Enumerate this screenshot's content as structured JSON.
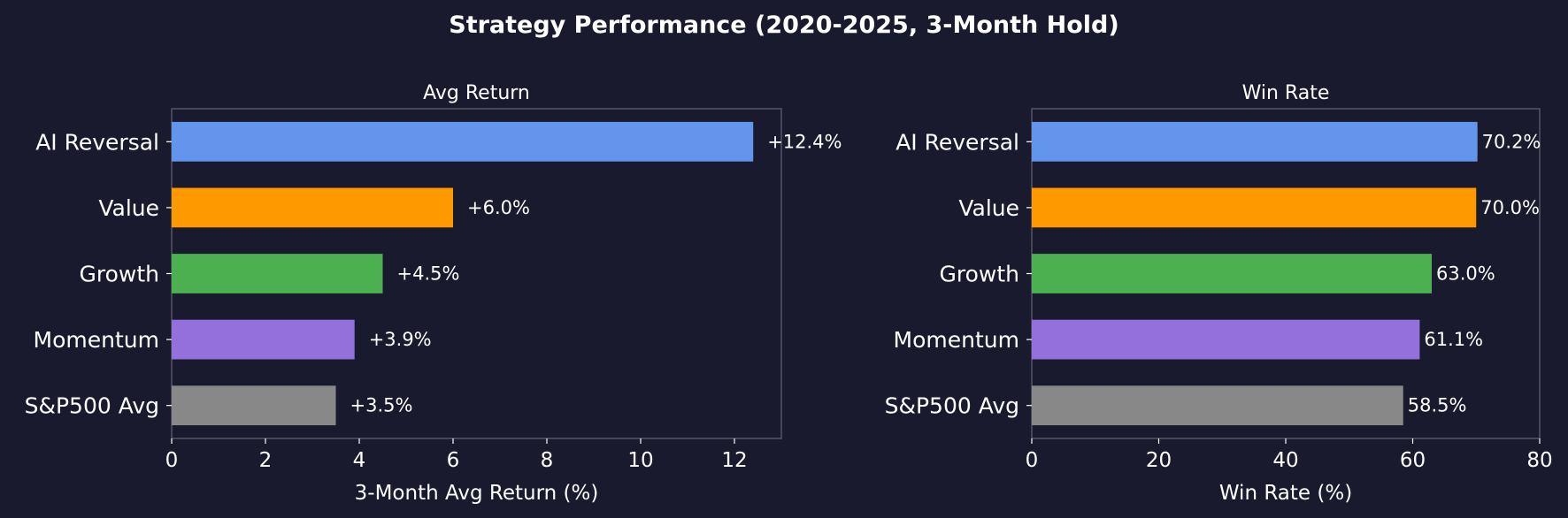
{
  "title": "Strategy Performance (2020-2025, 3-Month Hold)",
  "colors": {
    "background": "#1a1a2e",
    "text": "#ffffff",
    "frame": "#555566"
  },
  "chart_data": [
    {
      "type": "bar",
      "orientation": "horizontal",
      "title": "Avg Return",
      "xlabel": "3-Month Avg Return (%)",
      "ylabel": "",
      "categories": [
        "AI Reversal",
        "Value",
        "Growth",
        "Momentum",
        "S&P500 Avg"
      ],
      "values": [
        12.4,
        6.0,
        4.5,
        3.9,
        3.5
      ],
      "data_labels": [
        "+12.4%",
        "+6.0%",
        "+4.5%",
        "+3.9%",
        "+3.5%"
      ],
      "colors": [
        "#6495ed",
        "#ff9900",
        "#4caf50",
        "#9370db",
        "#888888"
      ],
      "xlim": [
        0,
        13
      ],
      "xticks": [
        0,
        2,
        4,
        6,
        8,
        10,
        12
      ],
      "xtick_labels": [
        "0",
        "2",
        "4",
        "6",
        "8",
        "10",
        "12"
      ],
      "grid": false
    },
    {
      "type": "bar",
      "orientation": "horizontal",
      "title": "Win Rate",
      "xlabel": "Win Rate (%)",
      "ylabel": "",
      "categories": [
        "AI Reversal",
        "Value",
        "Growth",
        "Momentum",
        "S&P500 Avg"
      ],
      "values": [
        70.2,
        70.0,
        63.0,
        61.1,
        58.5
      ],
      "data_labels": [
        "70.2%",
        "70.0%",
        "63.0%",
        "61.1%",
        "58.5%"
      ],
      "colors": [
        "#6495ed",
        "#ff9900",
        "#4caf50",
        "#9370db",
        "#888888"
      ],
      "xlim": [
        0,
        80
      ],
      "xticks": [
        0,
        20,
        40,
        60,
        80
      ],
      "xtick_labels": [
        "0",
        "20",
        "40",
        "60",
        "80"
      ],
      "grid": false
    }
  ]
}
